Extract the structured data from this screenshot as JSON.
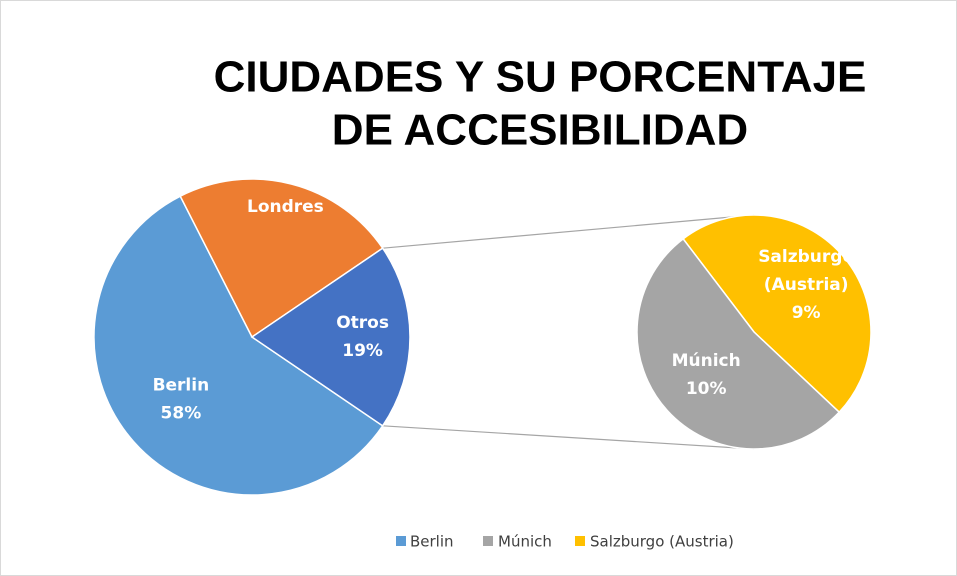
{
  "chart_data": {
    "type": "pie-of-pie",
    "title": [
      "CIUDADES Y SU PORCENTAJE",
      "DE ACCESIBILIDAD"
    ],
    "main": {
      "categories": [
        "Berlin",
        "Londres",
        "Otros"
      ],
      "values": [
        58,
        23,
        19
      ],
      "value_labels": [
        "58%",
        null,
        "19%"
      ],
      "colors": [
        "#5b9bd5",
        "#ed7d31",
        "#4472c4"
      ]
    },
    "secondary": {
      "categories": [
        "Salzburgo (Austria)",
        "Múnich"
      ],
      "values": [
        9,
        10
      ],
      "value_labels": [
        "9%",
        "10%"
      ],
      "colors": [
        "#ffc000",
        "#a5a5a5"
      ]
    }
  }
}
